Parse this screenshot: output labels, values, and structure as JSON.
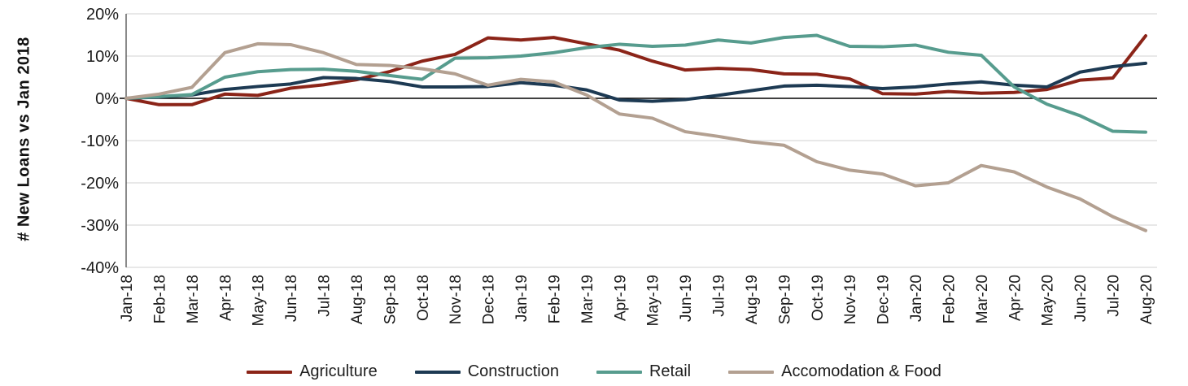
{
  "chart_data": {
    "type": "line",
    "title": "",
    "xlabel": "",
    "ylabel": "# New Loans vs Jan 2018",
    "ylim": [
      -40,
      20
    ],
    "y_tick_labels": [
      "20%",
      "10%",
      "0%",
      "-10%",
      "-20%",
      "-30%",
      "-40%"
    ],
    "grid": "horizontal",
    "legend_position": "bottom",
    "categories": [
      "Jan-18",
      "Feb-18",
      "Mar-18",
      "Apr-18",
      "May-18",
      "Jun-18",
      "Jul-18",
      "Aug-18",
      "Sep-18",
      "Oct-18",
      "Nov-18",
      "Dec-18",
      "Jan-19",
      "Feb-19",
      "Mar-19",
      "Apr-19",
      "May-19",
      "Jun-19",
      "Jul-19",
      "Aug-19",
      "Sep-19",
      "Oct-19",
      "Nov-19",
      "Dec-19",
      "Jan-20",
      "Feb-20",
      "Mar-20",
      "Apr-20",
      "May-20",
      "Jun-20",
      "Jul-20",
      "Aug-20"
    ],
    "series": [
      {
        "name": "Agriculture",
        "color": "#8B2418",
        "values": [
          0,
          -1.5,
          -1.5,
          1.0,
          0.7,
          2.4,
          3.2,
          4.4,
          6.3,
          8.8,
          10.4,
          14.3,
          13.8,
          14.4,
          12.9,
          11.4,
          8.8,
          6.7,
          7.1,
          6.8,
          5.8,
          5.7,
          4.6,
          1.1,
          1.0,
          1.6,
          1.2,
          1.4,
          2.1,
          4.3,
          4.8,
          14.8
        ]
      },
      {
        "name": "Construction",
        "color": "#1D3A53",
        "values": [
          0,
          0.3,
          0.8,
          2.1,
          2.8,
          3.4,
          4.9,
          4.7,
          4.0,
          2.7,
          2.7,
          2.8,
          3.7,
          3.1,
          2.0,
          -0.4,
          -0.7,
          -0.3,
          0.7,
          1.8,
          2.9,
          3.1,
          2.8,
          2.3,
          2.7,
          3.4,
          3.9,
          3.1,
          2.7,
          6.2,
          7.5,
          8.3
        ]
      },
      {
        "name": "Retail",
        "color": "#579C8E",
        "values": [
          0,
          0.4,
          0.9,
          5.0,
          6.3,
          6.8,
          6.9,
          6.4,
          5.4,
          4.5,
          9.5,
          9.6,
          10.0,
          10.8,
          12.0,
          12.8,
          12.3,
          12.6,
          13.8,
          13.1,
          14.4,
          14.9,
          12.3,
          12.2,
          12.6,
          10.9,
          10.2,
          2.7,
          -1.4,
          -4.1,
          -7.8,
          -8.0
        ]
      },
      {
        "name": "Accomodation & Food",
        "color": "#B3A091",
        "values": [
          0,
          1.0,
          2.6,
          10.8,
          12.9,
          12.7,
          10.8,
          8.0,
          7.8,
          7.0,
          5.8,
          3.1,
          4.5,
          3.9,
          0.8,
          -3.7,
          -4.7,
          -7.9,
          -9.0,
          -10.3,
          -11.1,
          -15.0,
          -17.0,
          -17.9,
          -20.7,
          -20.0,
          -15.9,
          -17.4,
          -21.0,
          -23.8,
          -28.0,
          -31.3
        ]
      }
    ],
    "colors": {
      "gridline": "#D9D9D9",
      "zero_line": "#000000",
      "axis_line": "#595959",
      "tick_text": "#1a1a1a"
    }
  }
}
